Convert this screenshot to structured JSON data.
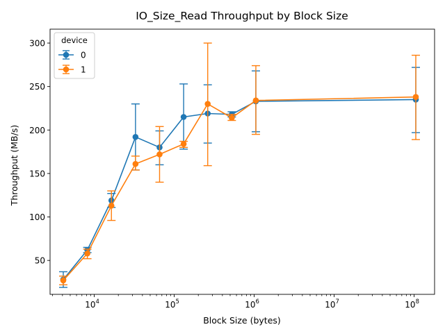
{
  "chart_data": {
    "type": "line",
    "title": "IO_Size_Read Throughput by Block Size",
    "xlabel": "Block Size (bytes)",
    "ylabel": "Throughput (MB/s)",
    "xscale": "log",
    "xlim": [
      2800,
      180000000
    ],
    "ylim": [
      11,
      316
    ],
    "x_ticks": [
      {
        "value": 10000,
        "base": "10",
        "exp": "4"
      },
      {
        "value": 100000,
        "base": "10",
        "exp": "5"
      },
      {
        "value": 1000000,
        "base": "10",
        "exp": "6"
      },
      {
        "value": 10000000,
        "base": "10",
        "exp": "7"
      },
      {
        "value": 100000000,
        "base": "10",
        "exp": "8"
      }
    ],
    "y_ticks": [
      50,
      100,
      150,
      200,
      250,
      300
    ],
    "grid": false,
    "legend": {
      "title": "device",
      "placement": "top-left"
    },
    "series": [
      {
        "name": "0",
        "color": "#1f77b4",
        "x": [
          4096,
          8192,
          16384,
          32768,
          65536,
          131072,
          262144,
          524288,
          1048576,
          104857600
        ],
        "y": [
          28,
          62,
          119,
          192,
          180,
          215,
          219,
          218,
          233,
          235
        ],
        "err_low": [
          19,
          59,
          111,
          154,
          160,
          178,
          185,
          215,
          198,
          197
        ],
        "err_high": [
          37,
          65,
          127,
          230,
          199,
          253,
          252,
          221,
          268,
          272
        ]
      },
      {
        "name": "1",
        "color": "#ff7f0e",
        "x": [
          4096,
          8192,
          16384,
          32768,
          65536,
          131072,
          262144,
          524288,
          1048576,
          104857600
        ],
        "y": [
          27,
          58,
          113,
          161,
          172,
          184,
          230,
          214,
          234,
          238
        ],
        "err_low": [
          22,
          52,
          96,
          154,
          140,
          180,
          159,
          211,
          195,
          189
        ],
        "err_high": [
          32,
          63,
          130,
          170,
          204,
          187,
          300,
          218,
          274,
          286
        ]
      }
    ]
  }
}
